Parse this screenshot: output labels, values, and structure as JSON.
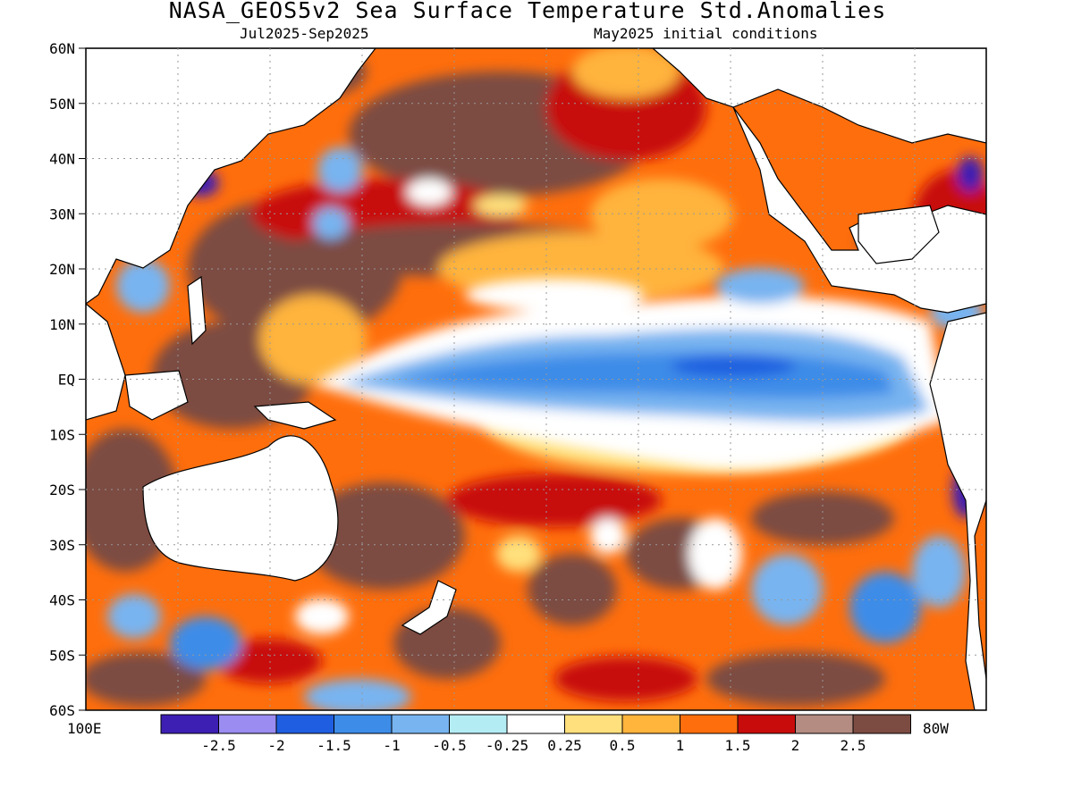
{
  "title": "NASA_GEOS5v2 Sea Surface Temperature Std.Anomalies",
  "subtitle_left": "Jul2025-Sep2025",
  "subtitle_right": "May2025 initial conditions",
  "y_axis_labels": [
    "60N",
    "50N",
    "40N",
    "30N",
    "20N",
    "10N",
    "EQ",
    "10S",
    "20S",
    "30S",
    "40S",
    "50S",
    "60S"
  ],
  "x_axis_labels": [
    "100E",
    "80W"
  ],
  "colorbar": {
    "labels": [
      "-2.5",
      "-2",
      "-1.5",
      "-1",
      "-0.5",
      "-0.25",
      "0.25",
      "0.5",
      "1",
      "1.5",
      "2",
      "2.5"
    ],
    "colors": [
      "#3d1fb4",
      "#9a8cf0",
      "#1f5ee0",
      "#3d8ce8",
      "#78b4f0",
      "#b4ecf4",
      "#ffffff",
      "#ffe07c",
      "#ffb43c",
      "#ff6e0c",
      "#c80c0c",
      "#b48c82",
      "#7c4c42"
    ]
  }
}
